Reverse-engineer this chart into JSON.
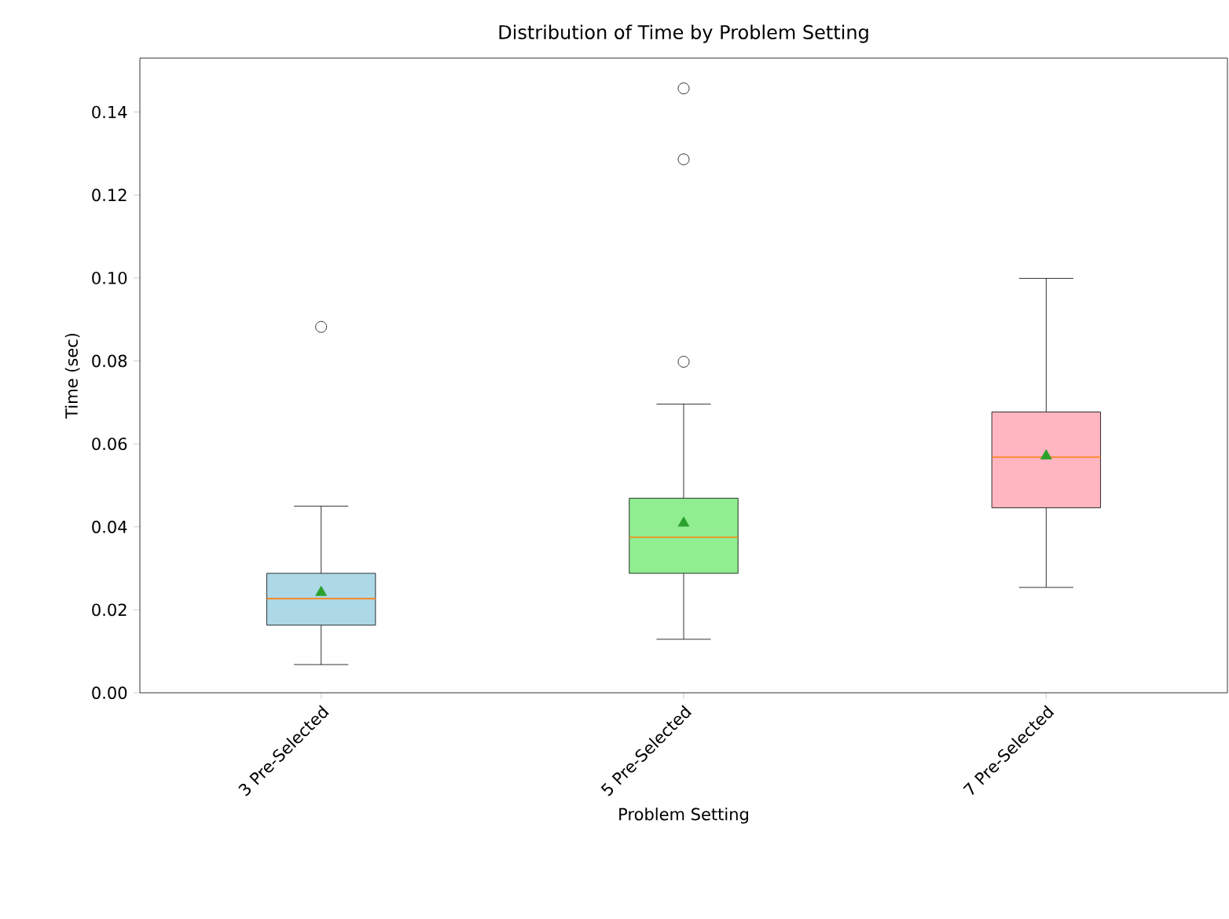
{
  "chart_data": {
    "type": "box",
    "title": "Distribution of Time by Problem Setting",
    "xlabel": "Problem Setting",
    "ylabel": "Time (sec)",
    "categories": [
      "3 Pre-Selected",
      "5 Pre-Selected",
      "7 Pre-Selected"
    ],
    "colors": [
      "#add8e6",
      "#90ee90",
      "#ffb6c1"
    ],
    "boxes": [
      {
        "low": 0.0068,
        "q1": 0.0163,
        "median": 0.0227,
        "q3": 0.0288,
        "high": 0.045,
        "mean": 0.0242,
        "outliers": [
          0.0882
        ]
      },
      {
        "low": 0.0129,
        "q1": 0.0288,
        "median": 0.0375,
        "q3": 0.0469,
        "high": 0.0696,
        "mean": 0.0409,
        "outliers": [
          0.0798,
          0.1286,
          0.1457
        ]
      },
      {
        "low": 0.0254,
        "q1": 0.0446,
        "median": 0.0568,
        "q3": 0.0677,
        "high": 0.0999,
        "mean": 0.0571
      }
    ],
    "ylim": [
      0,
      0.153
    ],
    "yticks": [
      {
        "value": 0,
        "label": "0.00"
      },
      {
        "value": 0.02,
        "label": "0.02"
      },
      {
        "value": 0.04,
        "label": "0.04"
      },
      {
        "value": 0.06,
        "label": "0.06"
      },
      {
        "value": 0.08,
        "label": "0.08"
      },
      {
        "value": 0.1,
        "label": "0.10"
      },
      {
        "value": 0.12,
        "label": "0.12"
      },
      {
        "value": 0.14,
        "label": "0.14"
      }
    ]
  }
}
